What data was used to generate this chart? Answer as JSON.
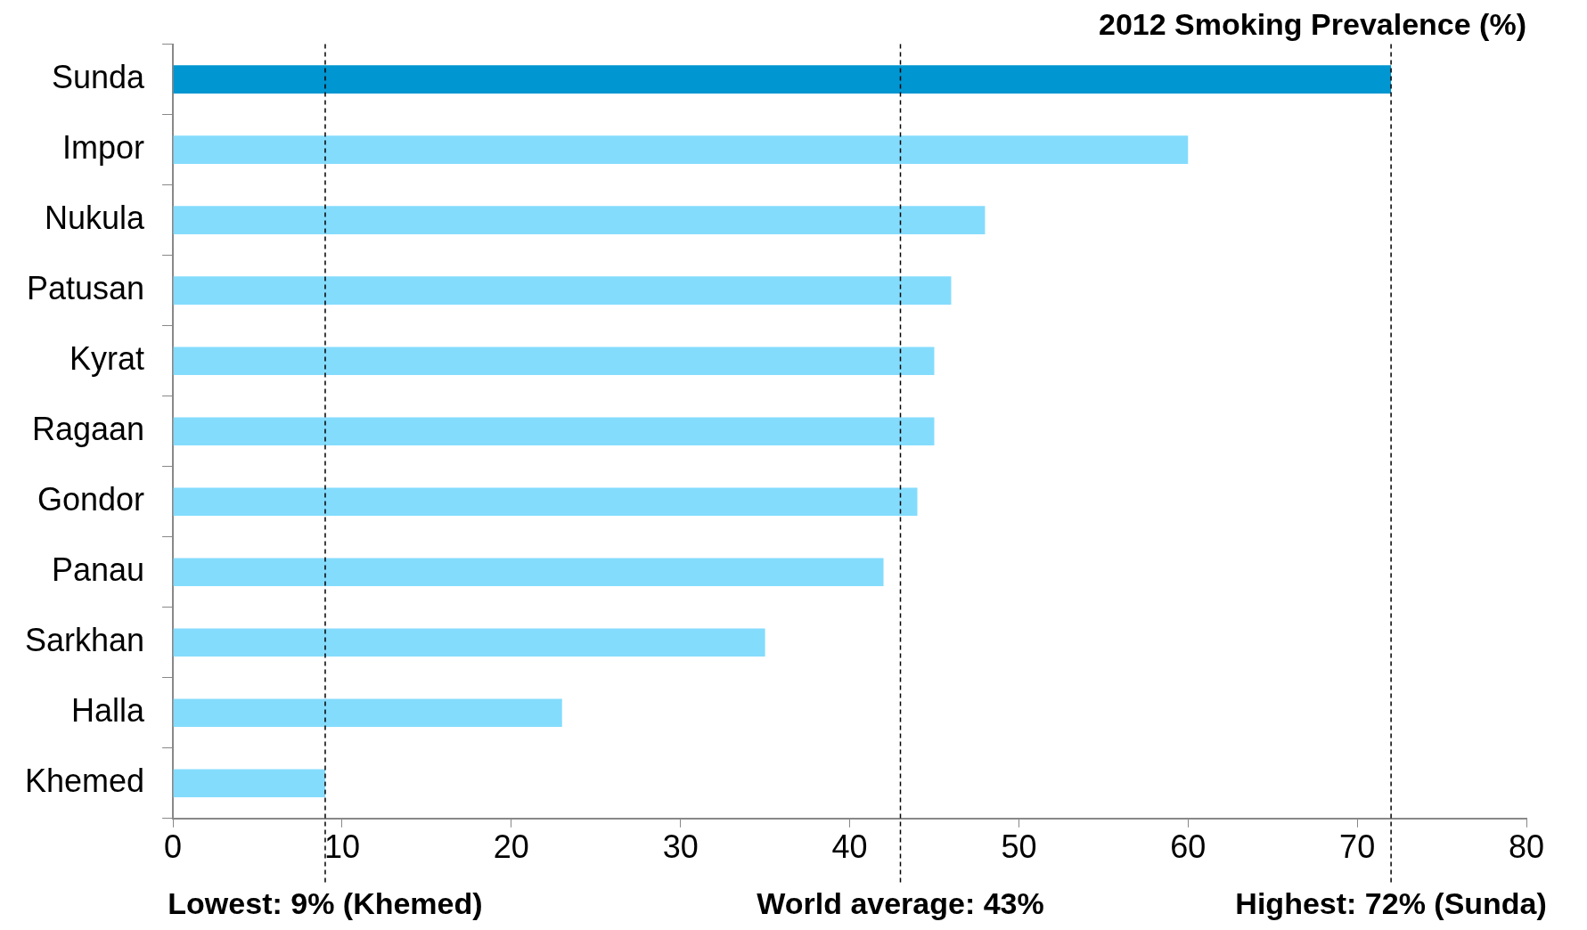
{
  "chart_data": {
    "type": "bar",
    "orientation": "horizontal",
    "title": "2012 Smoking Prevalence (%)",
    "categories": [
      "Sunda",
      "Impor",
      "Nukula",
      "Patusan",
      "Kyrat",
      "Ragaan",
      "Gondor",
      "Panau",
      "Sarkhan",
      "Halla",
      "Khemed"
    ],
    "values": [
      72,
      60,
      48,
      46,
      45,
      45,
      44,
      42,
      35,
      23,
      9
    ],
    "colors": [
      "#0096d1",
      "#84dcfd",
      "#84dcfd",
      "#84dcfd",
      "#84dcfd",
      "#84dcfd",
      "#84dcfd",
      "#84dcfd",
      "#84dcfd",
      "#84dcfd",
      "#84dcfd"
    ],
    "xlim": [
      0,
      80
    ],
    "xticks": [
      0,
      10,
      20,
      30,
      40,
      50,
      60,
      70,
      80
    ],
    "grid": false,
    "legend": false,
    "ref_lines": [
      {
        "axis": "x",
        "value": 9,
        "label": "Lowest: 9% (Khemed)",
        "color": "#000000",
        "line_style": "dashed"
      },
      {
        "axis": "x",
        "value": 43,
        "label": "World average: 43%",
        "color": "#000000",
        "line_style": "dashed"
      },
      {
        "axis": "x",
        "value": 72,
        "label": "Highest: 72% (Sunda)",
        "color": "#000000",
        "line_style": "dashed"
      }
    ]
  }
}
